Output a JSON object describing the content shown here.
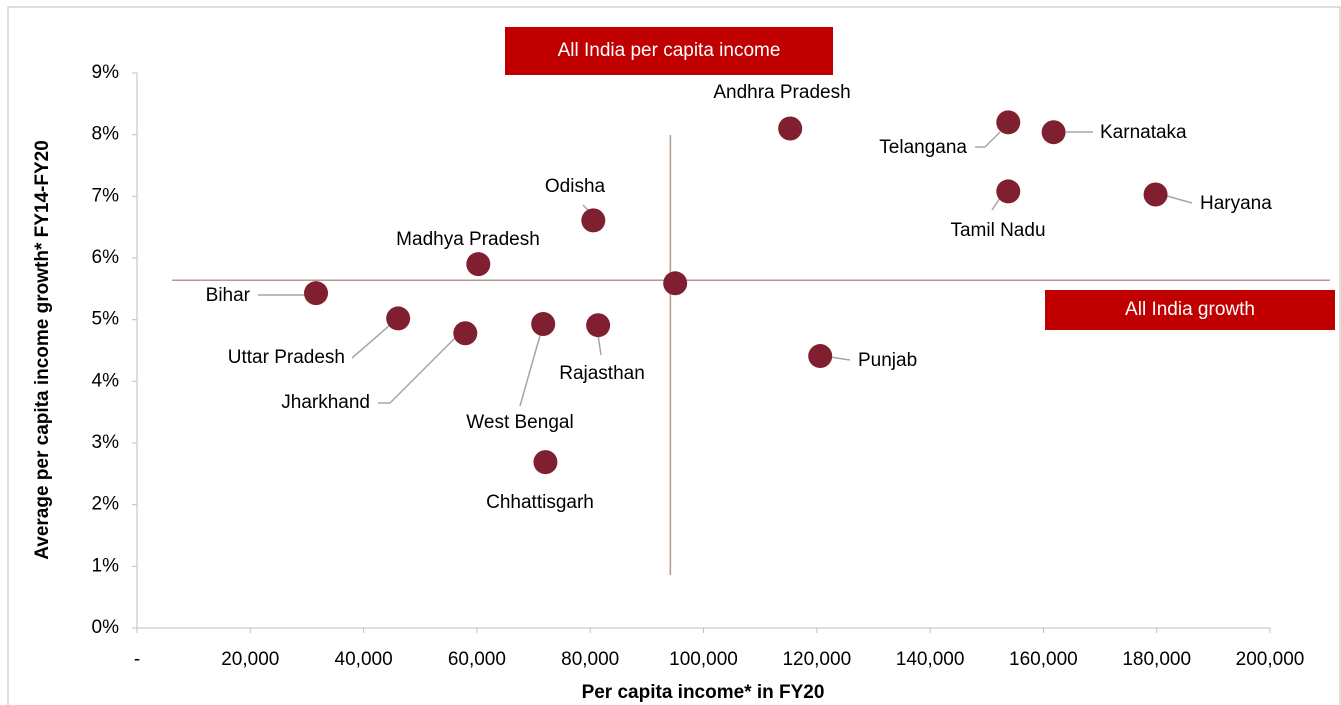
{
  "chart_data": {
    "type": "scatter",
    "xlabel": "Per capita income* in FY20",
    "ylabel": "Average per capita income growth* FY14-FY20",
    "labels": [
      "Bihar",
      "Uttar Pradesh",
      "Jharkhand",
      "Madhya Pradesh",
      "West Bengal",
      "Rajasthan",
      "Odisha",
      "Chhattisgarh",
      null,
      "Andhra Pradesh",
      "Punjab",
      "Telangana",
      "Tamil Nadu",
      "Karnataka",
      "Haryana"
    ],
    "x": [
      31600,
      46100,
      57950,
      60250,
      71700,
      81400,
      80550,
      72100,
      95000,
      115300,
      120600,
      153800,
      153800,
      161800,
      179800
    ],
    "values": [
      5.43,
      5.02,
      4.78,
      5.9,
      4.93,
      4.91,
      6.61,
      2.69,
      5.59,
      8.1,
      4.41,
      8.2,
      7.08,
      8.04,
      7.03
    ],
    "color": "#7f1f2f",
    "reference_lines": [
      {
        "axis": "x",
        "value": 94150,
        "label": "All India per capita income"
      },
      {
        "axis": "y",
        "value": 5.64,
        "label": "All India growth"
      }
    ],
    "reference_color": "#b39a8e",
    "annotation_color": "#c00000",
    "xlim": [
      0,
      200000
    ],
    "xticks": [
      {
        "value": 0,
        "label": "-"
      },
      {
        "value": 20000,
        "label": "20,000"
      },
      {
        "value": 40000,
        "label": "40,000"
      },
      {
        "value": 60000,
        "label": "60,000"
      },
      {
        "value": 80000,
        "label": "80,000"
      },
      {
        "value": 100000,
        "label": "100,000"
      },
      {
        "value": 120000,
        "label": "120,000"
      },
      {
        "value": 140000,
        "label": "140,000"
      },
      {
        "value": 160000,
        "label": "160,000"
      },
      {
        "value": 180000,
        "label": "180,000"
      },
      {
        "value": 200000,
        "label": "200,000"
      }
    ],
    "ylim": [
      0,
      9
    ],
    "yticks": [
      {
        "value": 0,
        "label": "0%"
      },
      {
        "value": 1,
        "label": "1%"
      },
      {
        "value": 2,
        "label": "2%"
      },
      {
        "value": 3,
        "label": "3%"
      },
      {
        "value": 4,
        "label": "4%"
      },
      {
        "value": 5,
        "label": "5%"
      },
      {
        "value": 6,
        "label": "6%"
      },
      {
        "value": 7,
        "label": "7%"
      },
      {
        "value": 8,
        "label": "8%"
      },
      {
        "value": 9,
        "label": "9%"
      }
    ],
    "grid": false
  }
}
